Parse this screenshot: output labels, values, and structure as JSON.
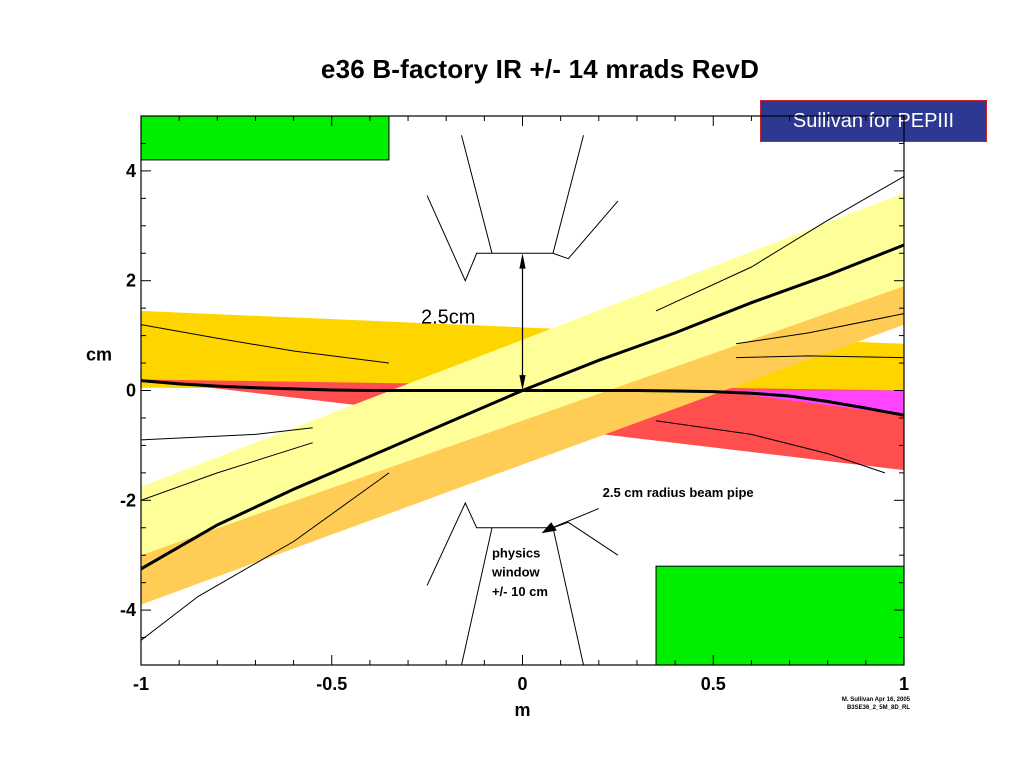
{
  "chart_data": {
    "type": "line",
    "title": "e36 B-factory IR +/- 14 mrads RevD",
    "xlabel": "m",
    "ylabel": "cm",
    "xlim": [
      -1,
      1
    ],
    "ylim": [
      -5,
      5
    ],
    "x_ticks": [
      -1,
      -0.5,
      0,
      0.5,
      1
    ],
    "x_tick_labels": [
      "-1",
      "-0.5",
      "0",
      "0.5",
      "1"
    ],
    "y_ticks": [
      -4,
      -2,
      0,
      2,
      4
    ],
    "y_tick_labels": [
      "-4",
      "-2",
      "0",
      "2",
      "4"
    ],
    "colors": {
      "gold_band": "#ffd500",
      "red_band": "#ff4e4e",
      "magenta_patch": "#ff44ff",
      "orange_patch": "#ff7f00",
      "light_orange_band": "#ffcc55",
      "light_yellow_band": "#ffff99",
      "magnet_green": "#00ee00"
    },
    "series": [
      {
        "x": [
          -1,
          -0.9,
          -0.8,
          -0.7,
          -0.6,
          -0.5,
          -0.4,
          -0.3,
          -0.2,
          -0.1,
          0,
          0.1,
          0.2,
          0.3,
          0.4,
          0.5,
          0.6,
          0.7,
          0.8,
          0.9,
          1
        ],
        "y": [
          0.18,
          0.12,
          0.08,
          0.05,
          0.03,
          0.01,
          0,
          0,
          0,
          0,
          0,
          0,
          0,
          0,
          -0.01,
          -0.02,
          -0.05,
          -0.1,
          -0.2,
          -0.32,
          -0.45
        ]
      },
      {
        "x": [
          -1,
          -0.8,
          -0.6,
          -0.4,
          -0.2,
          0,
          0.2,
          0.4,
          0.6,
          0.8,
          1
        ],
        "y": [
          -3.25,
          -2.45,
          -1.8,
          -1.2,
          -0.6,
          0,
          0.55,
          1.05,
          1.6,
          2.1,
          2.65
        ]
      }
    ],
    "bands": [
      {
        "x": [
          -1,
          1
        ],
        "upper": [
          1.45,
          0.85
        ],
        "lower": [
          0.05,
          0
        ]
      },
      {
        "x": [
          -1,
          1
        ],
        "upper": [
          0.2,
          0
        ],
        "lower": [
          0.2,
          -1.45
        ]
      },
      {
        "x": [
          -1,
          1
        ],
        "upper": [
          -1.75,
          3.6
        ],
        "lower": [
          -3.0,
          1.9
        ]
      },
      {
        "x": [
          -1,
          1
        ],
        "upper": [
          -2.9,
          2.4
        ],
        "lower": [
          -3.9,
          1.2
        ]
      }
    ],
    "magnets": [
      {
        "x": [
          -1,
          -0.35
        ],
        "y": [
          4.2,
          5.0
        ]
      },
      {
        "x": [
          0.35,
          1
        ],
        "y": [
          -5.0,
          -3.2
        ]
      }
    ],
    "annotations": [
      {
        "text": "2.5cm",
        "x": -0.2,
        "y": 1.35
      },
      {
        "text": "2.5 cm radius beam pipe",
        "x": 0.21,
        "y": -1.85
      },
      {
        "text": "physics",
        "x": -0.08,
        "y": -2.95
      },
      {
        "text": "window",
        "x": -0.08,
        "y": -3.3
      },
      {
        "text": "+/- 10 cm",
        "x": -0.08,
        "y": -3.65
      }
    ]
  },
  "badge": "Sullivan for PEPIII",
  "credit": {
    "line1": "M. Sullivan Apr 16, 2005",
    "line2": "B3SE36_2_5M_8D_RL"
  }
}
